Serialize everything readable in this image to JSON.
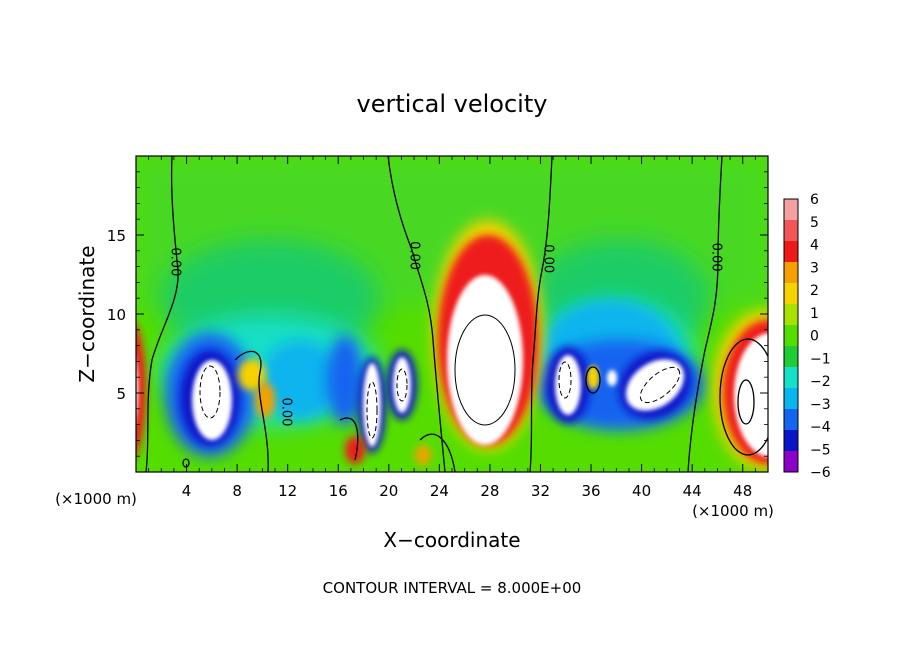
{
  "chart_data": {
    "type": "heatmap",
    "title": "vertical velocity",
    "xlabel": "X−coordinate",
    "ylabel": "Z−coordinate",
    "x_unit": "(×1000 m)",
    "y_unit": "(×1000 m)",
    "footer": "CONTOUR INTERVAL = 8.000E+00",
    "xlim": [
      0,
      50
    ],
    "ylim": [
      0,
      20
    ],
    "x_ticks": [
      4,
      8,
      12,
      16,
      20,
      24,
      28,
      32,
      36,
      40,
      44,
      48
    ],
    "x_tick_labels": [
      "4",
      "8",
      "12",
      "16",
      "20",
      "24",
      "28",
      "32",
      "36",
      "40",
      "44",
      "48"
    ],
    "y_ticks": [
      5,
      10,
      15
    ],
    "y_tick_labels": [
      "5",
      "10",
      "15"
    ],
    "colorbar": {
      "range": [
        -6,
        6
      ],
      "levels": [
        6,
        5,
        4,
        3,
        2,
        1,
        0,
        -1,
        -2,
        -3,
        -4,
        -5,
        -6
      ],
      "labels": [
        "6",
        "5",
        "4",
        "3",
        "2",
        "1",
        "0",
        "−1",
        "−2",
        "−3",
        "−4",
        "−5",
        "−6"
      ],
      "colors": [
        "#f5a0a0",
        "#f25555",
        "#ee1a1a",
        "#f5a000",
        "#f5d200",
        "#a8e000",
        "#55dd00",
        "#1ecc33",
        "#14e0c8",
        "#0ab4ee",
        "#1464f0",
        "#0a14c8",
        "#8c00c8"
      ]
    },
    "contour_labels": [
      {
        "text": "0.00",
        "x": 3.2,
        "y": 13.3
      },
      {
        "text": "0.00",
        "x": 22.1,
        "y": 13.7
      },
      {
        "text": "0.00",
        "x": 32.7,
        "y": 13.5
      },
      {
        "text": "0.00",
        "x": 46.0,
        "y": 13.6
      },
      {
        "text": "0.00",
        "x": 12.0,
        "y": 3.8
      }
    ]
  }
}
